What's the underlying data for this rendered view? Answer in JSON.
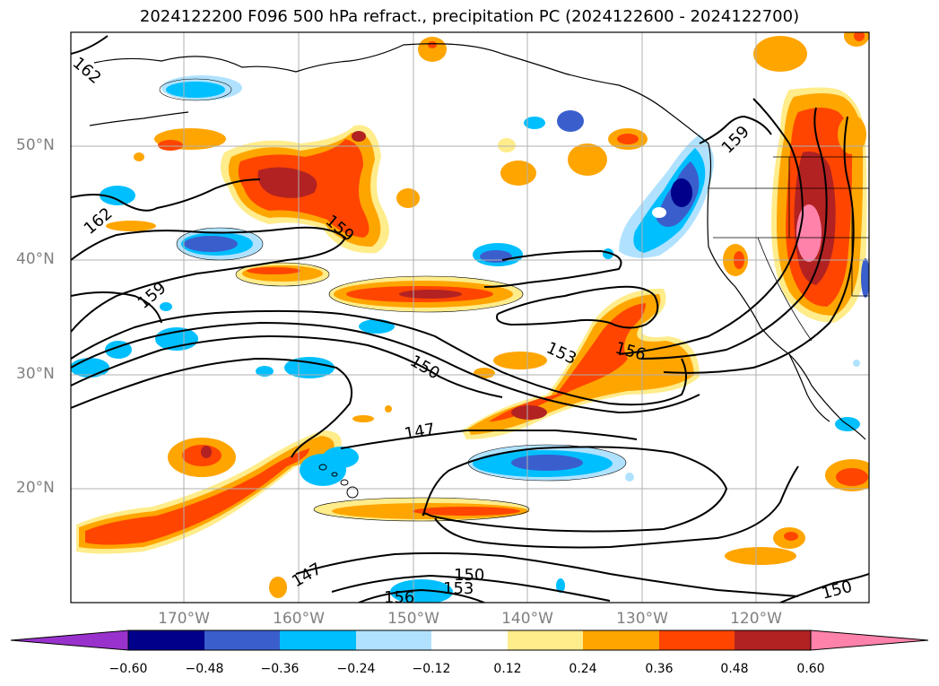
{
  "title": "2024122200 F096 500 hPa refract., precipitation PC (2024122600 - 2024122700)",
  "map": {
    "lat_labels": [
      "50°N",
      "40°N",
      "30°N",
      "20°N"
    ],
    "lon_labels": [
      "170°W",
      "160°W",
      "150°W",
      "140°W",
      "130°W",
      "120°W"
    ],
    "contour_labels": [
      "162",
      "162",
      "159",
      "159",
      "159",
      "150",
      "153",
      "156",
      "147",
      "147",
      "150",
      "153",
      "156",
      "150"
    ],
    "colors": {
      "neg_060": "#9932cc",
      "neg_048": "#00008b",
      "neg_036": "#3a5fcd",
      "neg_024": "#00bfff",
      "neg_012": "#b0e2ff",
      "pos_012": "#ffec8b",
      "pos_024": "#ffa500",
      "pos_036": "#ff4500",
      "pos_048": "#b22222",
      "pos_060": "#ff82ab"
    }
  },
  "colorbar": {
    "ticks": [
      "−0.60",
      "−0.48",
      "−0.36",
      "−0.24",
      "−0.12",
      "0.12",
      "0.24",
      "0.36",
      "0.48",
      "0.60"
    ],
    "colors": [
      "#9932cc",
      "#00008b",
      "#3a5fcd",
      "#00bfff",
      "#b0e2ff",
      "#ffffff",
      "#ffec8b",
      "#ffa500",
      "#ff4500",
      "#b22222",
      "#ff82ab"
    ]
  }
}
